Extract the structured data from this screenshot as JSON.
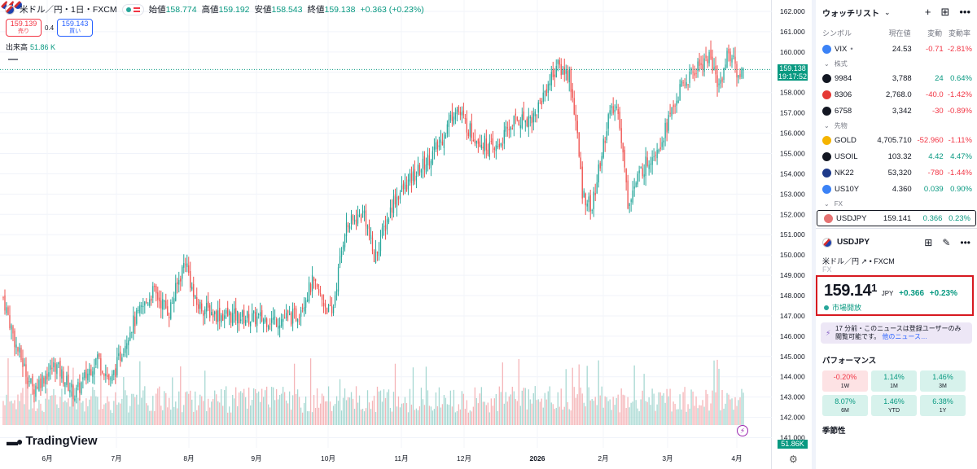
{
  "legend": {
    "title": "米ドル／円・1日・FXCM",
    "open_label": "始値",
    "open": "158.774",
    "high_label": "高値",
    "high": "159.192",
    "low_label": "安値",
    "low": "158.543",
    "close_label": "終値",
    "close": "159.138",
    "change": "+0.363 (+0.23%)"
  },
  "trade": {
    "sell_price": "159.139",
    "sell_label": "売り",
    "spread": "0.4",
    "buy_price": "159.143",
    "buy_label": "買い"
  },
  "volume_label": {
    "name": "出来高",
    "value": "51.86 K"
  },
  "logo_text": "TradingView",
  "price_tag": {
    "price": "159.138",
    "time": "19:17:52"
  },
  "volume_tag": "51.86K",
  "chart_data": {
    "type": "candlestick",
    "y_axis_ticks": [
      "162.000",
      "161.000",
      "160.000",
      "159.000",
      "158.000",
      "157.000",
      "156.000",
      "155.000",
      "154.000",
      "153.000",
      "152.000",
      "151.000",
      "150.000",
      "149.000",
      "148.000",
      "147.000",
      "146.000",
      "145.000",
      "144.000",
      "143.000",
      "142.000",
      "141.000"
    ],
    "y_range": [
      140.5,
      162.4
    ],
    "x_axis_ticks": [
      "6月",
      "7月",
      "8月",
      "9月",
      "10月",
      "11月",
      "12月",
      "2026",
      "2月",
      "3月",
      "4月"
    ],
    "current_price": 159.138,
    "path_anchors": [
      {
        "t": 0,
        "p": 147.9
      },
      {
        "t": 8,
        "p": 145.5
      },
      {
        "t": 18,
        "p": 143.4
      },
      {
        "t": 32,
        "p": 144.6
      },
      {
        "t": 44,
        "p": 143.1
      },
      {
        "t": 58,
        "p": 145.0
      },
      {
        "t": 66,
        "p": 143.7
      },
      {
        "t": 78,
        "p": 146.4
      },
      {
        "t": 92,
        "p": 148.2
      },
      {
        "t": 102,
        "p": 147.2
      },
      {
        "t": 112,
        "p": 149.8
      },
      {
        "t": 118,
        "p": 147.6
      },
      {
        "t": 130,
        "p": 147.1
      },
      {
        "t": 150,
        "p": 146.9
      },
      {
        "t": 168,
        "p": 146.8
      },
      {
        "t": 180,
        "p": 147.0
      },
      {
        "t": 190,
        "p": 148.6
      },
      {
        "t": 202,
        "p": 147.0
      },
      {
        "t": 210,
        "p": 151.3
      },
      {
        "t": 222,
        "p": 152.1
      },
      {
        "t": 228,
        "p": 149.8
      },
      {
        "t": 240,
        "p": 152.7
      },
      {
        "t": 255,
        "p": 154.1
      },
      {
        "t": 268,
        "p": 155.4
      },
      {
        "t": 278,
        "p": 157.3
      },
      {
        "t": 288,
        "p": 156.0
      },
      {
        "t": 302,
        "p": 155.1
      },
      {
        "t": 314,
        "p": 156.6
      },
      {
        "t": 326,
        "p": 156.8
      },
      {
        "t": 340,
        "p": 159.3
      },
      {
        "t": 348,
        "p": 158.9
      },
      {
        "t": 352,
        "p": 156.6
      },
      {
        "t": 356,
        "p": 153.1
      },
      {
        "t": 362,
        "p": 152.3
      },
      {
        "t": 372,
        "p": 156.8
      },
      {
        "t": 378,
        "p": 157.3
      },
      {
        "t": 384,
        "p": 152.6
      },
      {
        "t": 392,
        "p": 154.1
      },
      {
        "t": 404,
        "p": 155.6
      },
      {
        "t": 416,
        "p": 158.1
      },
      {
        "t": 426,
        "p": 159.2
      },
      {
        "t": 434,
        "p": 159.8
      },
      {
        "t": 440,
        "p": 158.3
      },
      {
        "t": 446,
        "p": 160.1
      },
      {
        "t": 452,
        "p": 158.8
      },
      {
        "t": 455,
        "p": 159.14
      }
    ],
    "volume_series": {
      "name": "出来高",
      "last": "51.86 K"
    }
  },
  "watchlist": {
    "title": "ウォッチリスト",
    "columns": [
      "シンボル",
      "現在値",
      "変動",
      "変動率"
    ],
    "sections": [
      {
        "label": "",
        "rows": [
          {
            "symbol": "VIX",
            "suffix": "•",
            "price": "24.53",
            "change": "-0.71",
            "pct": "-2.81%",
            "dir": "dn",
            "icon": "#3b82f6"
          }
        ]
      },
      {
        "label": "株式",
        "rows": [
          {
            "symbol": "9984",
            "price": "3,788",
            "change": "24",
            "pct": "0.64%",
            "dir": "up",
            "icon": "#131722"
          },
          {
            "symbol": "8306",
            "price": "2,768.0",
            "change": "-40.0",
            "pct": "-1.42%",
            "dir": "dn",
            "icon": "#e53935"
          },
          {
            "symbol": "6758",
            "price": "3,342",
            "change": "-30",
            "pct": "-0.89%",
            "dir": "dn",
            "icon": "#131722"
          }
        ]
      },
      {
        "label": "先物",
        "rows": [
          {
            "symbol": "GOLD",
            "price": "4,705.710",
            "change": "-52.960",
            "pct": "-1.11%",
            "dir": "dn",
            "icon": "#f5b400"
          },
          {
            "symbol": "USOIL",
            "price": "103.32",
            "change": "4.42",
            "pct": "4.47%",
            "dir": "up",
            "icon": "#131722"
          },
          {
            "symbol": "NK22",
            "price": "53,320",
            "change": "-780",
            "pct": "-1.44%",
            "dir": "dn",
            "icon": "#1e3a8a"
          },
          {
            "symbol": "US10Y",
            "price": "4.360",
            "change": "0.039",
            "pct": "0.90%",
            "dir": "up",
            "icon": "#3b82f6"
          }
        ]
      },
      {
        "label": "FX",
        "rows": [
          {
            "symbol": "USDJPY",
            "price": "159.141",
            "change": "0.366",
            "pct": "0.23%",
            "dir": "up",
            "icon": "#e57373",
            "selected": true
          }
        ]
      }
    ]
  },
  "symbol_panel": {
    "symbol": "USDJPY",
    "name": "米ドル／円",
    "exchange": "FXCM",
    "class": "FX",
    "price_main": "159.14",
    "price_sup": "1",
    "currency": "JPY",
    "change": "+0.366",
    "change_pct": "+0.23%",
    "market_status": "市場開放",
    "news": "17 分前・このニュースは登録ユーザーのみ閲覧可能です。",
    "news_link": "他のニュース…",
    "performance_title": "パフォーマンス",
    "performance": [
      {
        "value": "-0.20%",
        "label": "1W",
        "dir": "dn"
      },
      {
        "value": "1.14%",
        "label": "1M",
        "dir": "up"
      },
      {
        "value": "1.46%",
        "label": "3M",
        "dir": "up"
      },
      {
        "value": "8.07%",
        "label": "6M",
        "dir": "up"
      },
      {
        "value": "1.46%",
        "label": "YTD",
        "dir": "up"
      },
      {
        "value": "6.38%",
        "label": "1Y",
        "dir": "up"
      }
    ],
    "seasonality_title": "季節性"
  }
}
